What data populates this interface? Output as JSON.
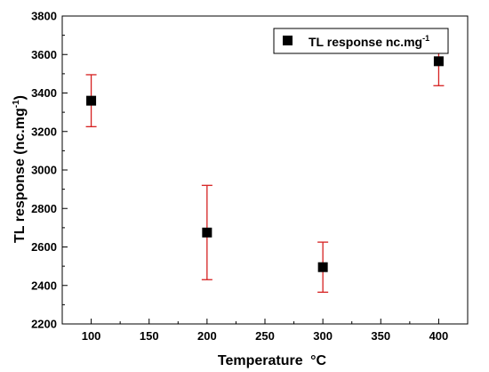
{
  "chart_data": {
    "type": "scatter",
    "xlabel": "Temperature",
    "xlabel_unit": "°C",
    "ylabel": "TL response (nc.mg",
    "ylabel_sup": "-1",
    "ylabel_end": ")",
    "xlim": [
      75,
      425
    ],
    "ylim": [
      2200,
      3800
    ],
    "x_ticks": [
      100,
      150,
      200,
      250,
      300,
      350,
      400
    ],
    "y_ticks": [
      2200,
      2400,
      2600,
      2800,
      3000,
      3200,
      3400,
      3600,
      3800
    ],
    "grid": false,
    "legend_position": "top-right",
    "series": [
      {
        "name": "TL response nc.mg",
        "name_sup": "-1",
        "marker": "square",
        "color": "#000000",
        "error_color": "#d62020",
        "points": [
          {
            "x": 100,
            "y": 3360,
            "err_low": 3225,
            "err_high": 3495
          },
          {
            "x": 200,
            "y": 2675,
            "err_low": 2430,
            "err_high": 2920
          },
          {
            "x": 300,
            "y": 2495,
            "err_low": 2365,
            "err_high": 2625
          },
          {
            "x": 400,
            "y": 3565,
            "err_low": 3438,
            "err_high": 3692
          }
        ]
      }
    ]
  }
}
